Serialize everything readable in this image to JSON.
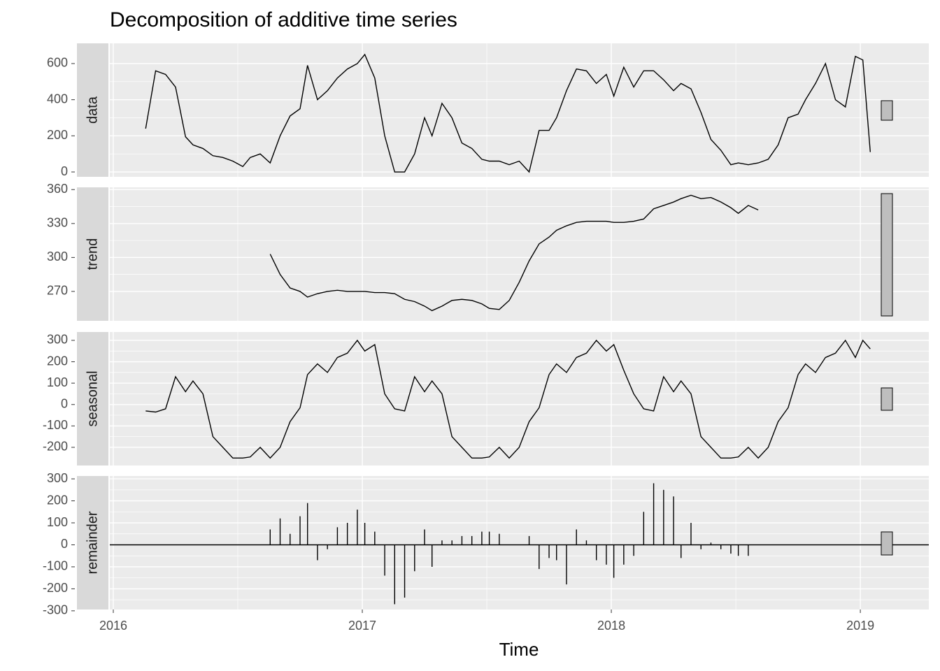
{
  "chart_data": {
    "type": "decomposition",
    "title": "Decomposition of additive time series",
    "xlabel": "Time",
    "xlim": [
      2015.986,
      2019.275
    ],
    "xticks": [
      2016,
      2017,
      2018,
      2019
    ],
    "x": [
      2016.13,
      2016.17,
      2016.21,
      2016.25,
      2016.29,
      2016.32,
      2016.36,
      2016.4,
      2016.44,
      2016.48,
      2016.52,
      2016.55,
      2016.59,
      2016.63,
      2016.67,
      2016.71,
      2016.75,
      2016.78,
      2016.82,
      2016.86,
      2016.9,
      2016.94,
      2016.98,
      2017.01,
      2017.05,
      2017.09,
      2017.13,
      2017.17,
      2017.21,
      2017.25,
      2017.28,
      2017.32,
      2017.36,
      2017.4,
      2017.44,
      2017.48,
      2017.51,
      2017.55,
      2017.59,
      2017.63,
      2017.67,
      2017.71,
      2017.75,
      2017.78,
      2017.82,
      2017.86,
      2017.9,
      2017.94,
      2017.98,
      2018.01,
      2018.05,
      2018.09,
      2018.13,
      2018.17,
      2018.21,
      2018.25,
      2018.28,
      2018.32,
      2018.36,
      2018.4,
      2018.44,
      2018.48,
      2018.51,
      2018.55,
      2018.59,
      2018.63,
      2018.67,
      2018.71,
      2018.75,
      2018.78,
      2018.82,
      2018.86,
      2018.9,
      2018.94,
      2018.98,
      2019.01,
      2019.04
    ],
    "panels": [
      {
        "type": "line",
        "name": "data",
        "color": "#000000",
        "ylim": [
          -27,
          712
        ],
        "yticks": [
          0,
          200,
          400,
          600
        ],
        "values": [
          240,
          560,
          540,
          470,
          195,
          150,
          130,
          90,
          80,
          60,
          30,
          80,
          100,
          50,
          200,
          310,
          350,
          590,
          400,
          450,
          520,
          570,
          600,
          650,
          520,
          200,
          0,
          0,
          100,
          300,
          200,
          380,
          300,
          160,
          130,
          70,
          60,
          60,
          40,
          60,
          0,
          230,
          230,
          300,
          450,
          570,
          560,
          490,
          540,
          420,
          580,
          470,
          560,
          560,
          510,
          450,
          490,
          460,
          330,
          180,
          120,
          40,
          50,
          40,
          50,
          70,
          150,
          300,
          320,
          400,
          490,
          600,
          400,
          360,
          640,
          620,
          110
        ]
      },
      {
        "type": "line",
        "name": "trend",
        "color": "#000000",
        "ylim": [
          244,
          362
        ],
        "yticks": [
          270,
          300,
          330,
          360
        ],
        "values": [
          null,
          null,
          null,
          null,
          null,
          null,
          null,
          null,
          null,
          null,
          null,
          null,
          null,
          303,
          285,
          273,
          270,
          265,
          268,
          270,
          271,
          270,
          270,
          270,
          269,
          269,
          268,
          263,
          261,
          257,
          253,
          257,
          262,
          263,
          262,
          259,
          255,
          254,
          262,
          278,
          297,
          312,
          318,
          324,
          328,
          331,
          332,
          332,
          332,
          331,
          331,
          332,
          334,
          343,
          346,
          349,
          352,
          355,
          352,
          353,
          349,
          344,
          339,
          346,
          342,
          null,
          null,
          null,
          null,
          null,
          null,
          null,
          null,
          null,
          null,
          null,
          null
        ]
      },
      {
        "type": "line",
        "name": "seasonal",
        "color": "#000000",
        "ylim": [
          -285,
          339
        ],
        "yticks": [
          -200,
          -100,
          0,
          100,
          200,
          300
        ],
        "values": [
          -30,
          -35,
          -20,
          130,
          60,
          110,
          50,
          -150,
          -200,
          -250,
          -250,
          -245,
          -200,
          -250,
          -200,
          -80,
          -15,
          140,
          190,
          150,
          220,
          240,
          300,
          250,
          280,
          50,
          -20,
          -30,
          130,
          60,
          110,
          50,
          -150,
          -200,
          -250,
          -250,
          -245,
          -200,
          -250,
          -200,
          -80,
          -15,
          140,
          190,
          150,
          220,
          240,
          300,
          250,
          280,
          160,
          50,
          -20,
          -30,
          130,
          60,
          110,
          50,
          -150,
          -200,
          -250,
          -250,
          -245,
          -200,
          -250,
          -200,
          -80,
          -15,
          140,
          190,
          150,
          220,
          240,
          300,
          220,
          300,
          260
        ]
      },
      {
        "type": "bar",
        "name": "remainder",
        "color": "#000000",
        "ylim": [
          -294,
          313
        ],
        "yticks": [
          -300,
          -200,
          -100,
          0,
          100,
          200,
          300
        ],
        "values": [
          null,
          null,
          null,
          null,
          null,
          null,
          null,
          null,
          null,
          null,
          null,
          null,
          null,
          70,
          120,
          50,
          130,
          190,
          -70,
          -20,
          80,
          100,
          160,
          100,
          60,
          -140,
          -270,
          -240,
          -120,
          70,
          -100,
          20,
          20,
          40,
          40,
          60,
          60,
          50,
          0,
          0,
          40,
          -110,
          -60,
          -70,
          -180,
          70,
          20,
          -70,
          -90,
          -150,
          -90,
          -50,
          150,
          280,
          250,
          220,
          -60,
          100,
          -20,
          10,
          -20,
          -40,
          -50,
          -50,
          null,
          null,
          null,
          null,
          null,
          null,
          null,
          null,
          null,
          null,
          null,
          null,
          null
        ]
      }
    ]
  }
}
